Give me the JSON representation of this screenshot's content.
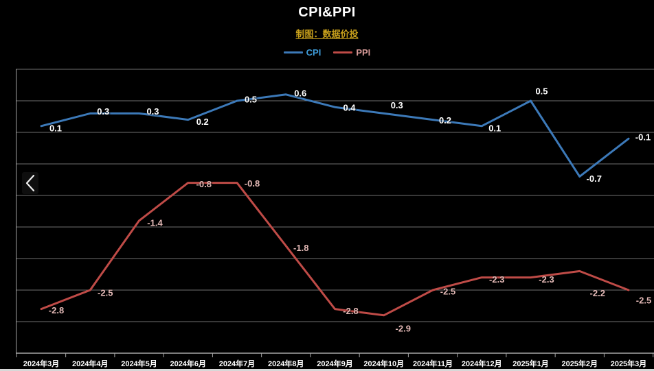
{
  "header": {
    "title": "CPI&PPI",
    "subtitle": "制图：数据价投"
  },
  "legend": {
    "items": [
      {
        "label": "CPI",
        "swatch_color": "#3C79B8",
        "text_color": "#3E9BD8"
      },
      {
        "label": "PPI",
        "swatch_color": "#BF4B47",
        "text_color": "#D89B99"
      }
    ]
  },
  "icons": {
    "prev": "chevron-left"
  },
  "chart_data": {
    "type": "line",
    "title": "CPI&PPI",
    "subtitle": "制图：数据价投",
    "categories": [
      "2024年3月",
      "2024年4月",
      "2024年5月",
      "2024年6月",
      "2024年7月",
      "2024年8月",
      "2024年9月",
      "2024年10月",
      "2024年11月",
      "2024年12月",
      "2025年1月",
      "2025年2月",
      "2025年3月"
    ],
    "series": [
      {
        "name": "CPI",
        "color": "#3C79B8",
        "label_color": "#FFFFFF",
        "values": [
          0.1,
          0.3,
          0.3,
          0.2,
          0.5,
          0.6,
          0.4,
          0.3,
          0.2,
          0.1,
          0.5,
          -0.7,
          -0.1
        ]
      },
      {
        "name": "PPI",
        "color": "#BF4B47",
        "label_color": "#E2B8B5",
        "values": [
          -2.8,
          -2.5,
          -1.4,
          -0.8,
          -0.8,
          -1.8,
          -2.8,
          -2.9,
          -2.5,
          -2.3,
          -2.3,
          -2.2,
          -2.5
        ]
      }
    ],
    "xlabel": "",
    "ylabel": "",
    "ylim": [
      -3.5,
      1.0
    ],
    "grid": true,
    "grid_step": 0.5,
    "legend_position": "top",
    "data_labels_decimals": 1,
    "colors": {
      "background": "#000000",
      "gridline": "#6F6F6F",
      "axis": "#A6A6A6",
      "title": "#FFFFFF",
      "subtitle": "#C9A11C",
      "tick_label": "#FFFFFF"
    }
  }
}
